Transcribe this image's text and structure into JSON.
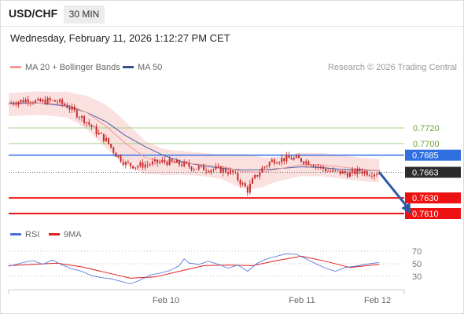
{
  "header": {
    "symbol": "USD/CHF",
    "timeframe": "30 MIN",
    "datetime": "Wednesday, February 11, 2026 1:12:27 PM CET"
  },
  "legend": {
    "ma20_label": "MA 20 + Bollinger Bands",
    "ma50_label": "MA 50",
    "credit": "Research © 2026 Trading Central",
    "rsi_label": "RSI",
    "rsi_ma_label": "9MA"
  },
  "colors": {
    "ma20": "#f29a9a",
    "bands": "#fbe0e0",
    "ma50": "#4a62a8",
    "candle": "#c62a2a",
    "blue_level": "#2f6fe0",
    "green_level": "#a8cf86",
    "red_level": "#ee1111",
    "arrow": "#2a5aa6",
    "rsi": "#4a6fd6",
    "rsi_ma": "#e02020",
    "current": "#2b2b2b"
  },
  "chart_data": [
    {
      "type": "candlestick",
      "title": "USD/CHF",
      "xlabel": "",
      "ylabel": "",
      "x_ticks": [
        "Feb 10",
        "Feb 11",
        "Feb 12"
      ],
      "ylim": [
        0.76,
        0.776
      ],
      "grid": false,
      "legend_placement": "top-left",
      "price_series": [
        [
          0,
          0.7752
        ],
        [
          4,
          0.7754
        ],
        [
          8,
          0.7757
        ],
        [
          12,
          0.7753
        ],
        [
          16,
          0.7755
        ],
        [
          20,
          0.7754
        ],
        [
          24,
          0.7748
        ],
        [
          28,
          0.7738
        ],
        [
          32,
          0.7728
        ],
        [
          36,
          0.7715
        ],
        [
          40,
          0.7704
        ],
        [
          44,
          0.7686
        ],
        [
          48,
          0.7674
        ],
        [
          52,
          0.7671
        ],
        [
          56,
          0.7673
        ],
        [
          60,
          0.7675
        ],
        [
          64,
          0.7677
        ],
        [
          68,
          0.7675
        ],
        [
          72,
          0.7673
        ],
        [
          76,
          0.7669
        ],
        [
          80,
          0.7668
        ],
        [
          84,
          0.7667
        ],
        [
          88,
          0.7666
        ],
        [
          92,
          0.7662
        ],
        [
          96,
          0.7647
        ],
        [
          98,
          0.764
        ],
        [
          100,
          0.7652
        ],
        [
          104,
          0.7668
        ],
        [
          108,
          0.7678
        ],
        [
          112,
          0.768
        ],
        [
          116,
          0.7681
        ],
        [
          120,
          0.7679
        ],
        [
          124,
          0.7675
        ],
        [
          128,
          0.7669
        ],
        [
          132,
          0.7664
        ],
        [
          136,
          0.7663
        ],
        [
          140,
          0.7661
        ],
        [
          144,
          0.7665
        ],
        [
          148,
          0.7662
        ],
        [
          152,
          0.7663
        ]
      ],
      "ma20": [
        [
          0,
          0.775
        ],
        [
          12,
          0.7752
        ],
        [
          24,
          0.775
        ],
        [
          32,
          0.774
        ],
        [
          40,
          0.7722
        ],
        [
          48,
          0.77
        ],
        [
          56,
          0.7682
        ],
        [
          64,
          0.7676
        ],
        [
          72,
          0.7675
        ],
        [
          80,
          0.7673
        ],
        [
          88,
          0.767
        ],
        [
          96,
          0.7664
        ],
        [
          104,
          0.7663
        ],
        [
          112,
          0.7668
        ],
        [
          120,
          0.7673
        ],
        [
          128,
          0.7673
        ],
        [
          136,
          0.767
        ],
        [
          144,
          0.7667
        ],
        [
          152,
          0.7665
        ]
      ],
      "ma50": [
        [
          0,
          0.7752
        ],
        [
          12,
          0.7752
        ],
        [
          24,
          0.7748
        ],
        [
          32,
          0.774
        ],
        [
          40,
          0.7728
        ],
        [
          48,
          0.771
        ],
        [
          56,
          0.7696
        ],
        [
          64,
          0.7684
        ],
        [
          72,
          0.7676
        ],
        [
          80,
          0.7671
        ],
        [
          88,
          0.7668
        ],
        [
          96,
          0.7666
        ],
        [
          104,
          0.7666
        ],
        [
          112,
          0.7668
        ],
        [
          120,
          0.767
        ],
        [
          128,
          0.7669
        ],
        [
          136,
          0.7667
        ],
        [
          144,
          0.7666
        ],
        [
          152,
          0.7665
        ]
      ],
      "bollinger_band_width": 0.0015,
      "levels": [
        {
          "value": 0.772,
          "label": "0.7720",
          "style": "green"
        },
        {
          "value": 0.77,
          "label": "0.7700",
          "style": "green"
        },
        {
          "value": 0.7685,
          "label": "0.7685",
          "style": "blue"
        },
        {
          "value": 0.7663,
          "label": "0.7663",
          "style": "current"
        },
        {
          "value": 0.763,
          "label": "0.7630",
          "style": "red"
        },
        {
          "value": 0.761,
          "label": "0.7610",
          "style": "red"
        }
      ],
      "forecast_arrow": {
        "from": [
          152,
          0.7663
        ],
        "to": [
          164,
          0.7613
        ],
        "direction": "down"
      }
    },
    {
      "type": "line",
      "title": "RSI",
      "xlabel": "",
      "ylabel": "",
      "y_ticks": [
        70,
        50,
        30
      ],
      "ylim": [
        10,
        80
      ],
      "grid": "dotted",
      "rsi": [
        [
          0,
          46
        ],
        [
          6,
          52
        ],
        [
          10,
          55
        ],
        [
          14,
          49
        ],
        [
          18,
          56
        ],
        [
          22,
          48
        ],
        [
          26,
          42
        ],
        [
          30,
          38
        ],
        [
          34,
          31
        ],
        [
          38,
          28
        ],
        [
          42,
          26
        ],
        [
          46,
          22
        ],
        [
          50,
          18
        ],
        [
          54,
          24
        ],
        [
          58,
          32
        ],
        [
          62,
          35
        ],
        [
          66,
          39
        ],
        [
          70,
          47
        ],
        [
          72,
          58
        ],
        [
          74,
          51
        ],
        [
          78,
          49
        ],
        [
          82,
          54
        ],
        [
          86,
          49
        ],
        [
          90,
          43
        ],
        [
          94,
          48
        ],
        [
          98,
          38
        ],
        [
          102,
          51
        ],
        [
          106,
          58
        ],
        [
          110,
          62
        ],
        [
          114,
          66
        ],
        [
          118,
          65
        ],
        [
          122,
          58
        ],
        [
          126,
          50
        ],
        [
          130,
          43
        ],
        [
          134,
          38
        ],
        [
          138,
          44
        ],
        [
          142,
          46
        ],
        [
          146,
          49
        ],
        [
          150,
          51
        ],
        [
          152,
          52
        ]
      ],
      "rsi_ma": [
        [
          0,
          47
        ],
        [
          10,
          49
        ],
        [
          20,
          51
        ],
        [
          30,
          45
        ],
        [
          40,
          36
        ],
        [
          50,
          27
        ],
        [
          60,
          29
        ],
        [
          70,
          38
        ],
        [
          80,
          47
        ],
        [
          90,
          48
        ],
        [
          100,
          47
        ],
        [
          110,
          55
        ],
        [
          120,
          62
        ],
        [
          130,
          54
        ],
        [
          140,
          44
        ],
        [
          152,
          49
        ]
      ]
    }
  ]
}
